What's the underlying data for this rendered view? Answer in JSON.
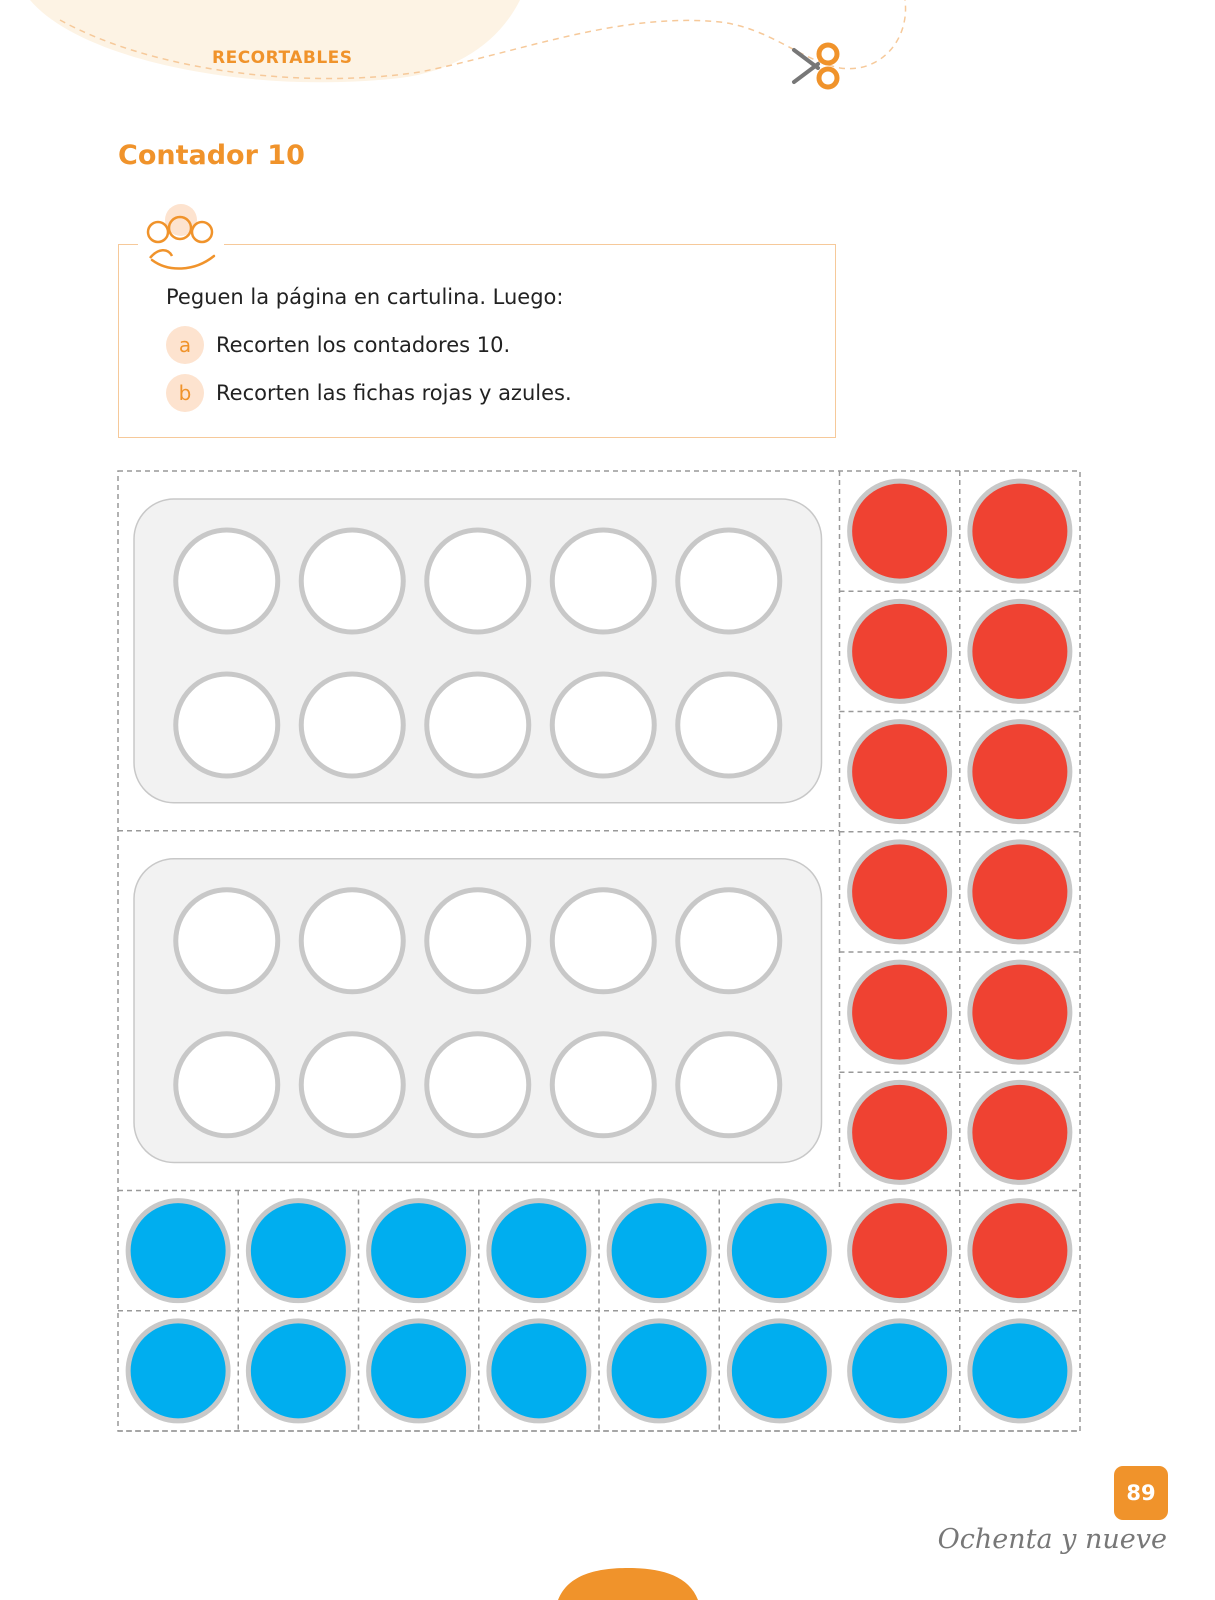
{
  "header": {
    "section_tag": "RECORTABLES",
    "scissors_icon": "scissors-icon",
    "accent_color": "#f0932b"
  },
  "title": "Contador 10",
  "instructions": {
    "group_icon": "children-group-icon",
    "lead": "Peguen la página en cartulina. Luego:",
    "steps": [
      {
        "letter": "a",
        "text": "Recorten los contadores 10."
      },
      {
        "letter": "b",
        "text": "Recorten las fichas rojas y azules."
      }
    ]
  },
  "cutouts": {
    "ten_frame_count": 2,
    "slots_per_frame": 10,
    "red_chip_count": 14,
    "blue_chip_count": 14,
    "red_color": "#ef4232",
    "blue_color": "#00aeef"
  },
  "footer": {
    "page_number": "89",
    "page_word": "Ochenta y nueve"
  }
}
